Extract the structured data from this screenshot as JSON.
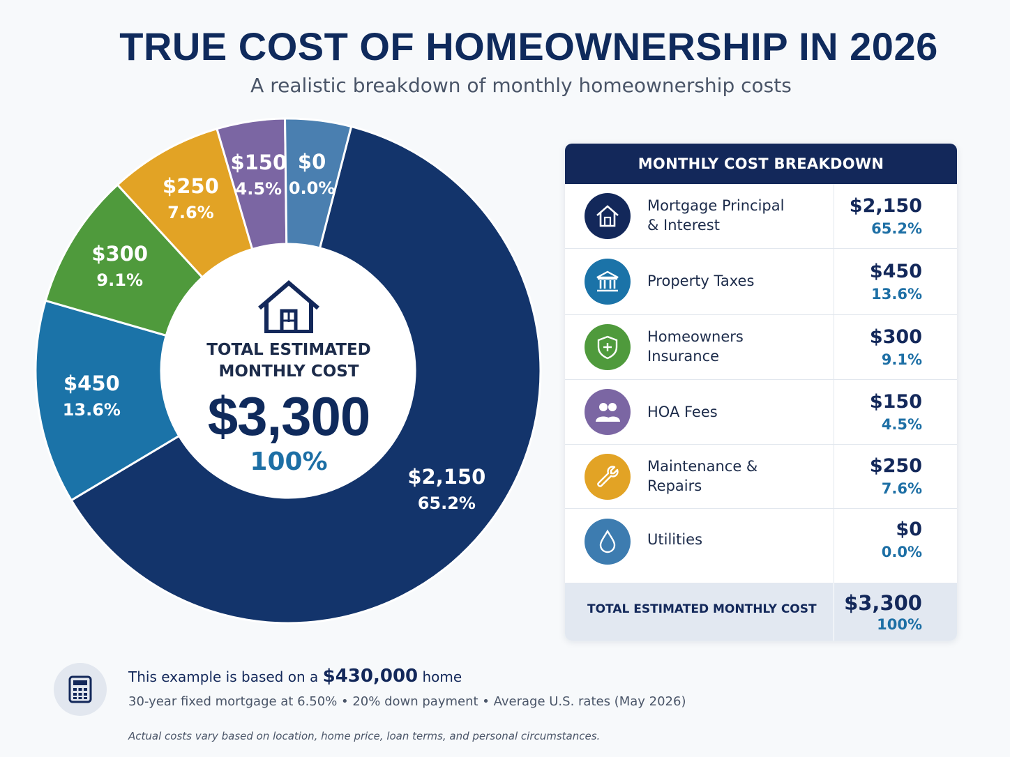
{
  "header": {
    "title": "TRUE COST OF HOMEOWNERSHIP IN 2026",
    "subtitle": "A realistic breakdown of monthly homeownership costs"
  },
  "center": {
    "title_line1": "TOTAL ESTIMATED",
    "title_line2": "MONTHLY COST",
    "value": "$3,300",
    "percent": "100%"
  },
  "chart_data": {
    "type": "pie",
    "categories": [
      "Mortgage Principal & Interest",
      "Property Taxes",
      "Homeowners Insurance",
      "Maintenance & Repairs",
      "HOA Fees",
      "Utilities"
    ],
    "values": [
      2150,
      450,
      300,
      250,
      150,
      0
    ],
    "percents": [
      65.2,
      13.6,
      9.1,
      7.6,
      4.5,
      0.0
    ],
    "value_labels": [
      "$2,150",
      "$450",
      "$300",
      "$250",
      "$150",
      "$0"
    ],
    "percent_labels": [
      "65.2%",
      "13.6%",
      "9.1%",
      "7.6%",
      "4.5%",
      "0.0%"
    ],
    "colors": [
      "#13346b",
      "#1b73a8",
      "#4f9a3c",
      "#e2a325",
      "#7b66a3",
      "#4a7fb0"
    ],
    "total": "$3,300",
    "total_percent": "100%"
  },
  "panel": {
    "heading": "MONTHLY COST BREAKDOWN",
    "rows": [
      {
        "label_line1": "Mortgage Principal",
        "label_line2": "& Interest",
        "amount": "$2,150",
        "percent": "65.2%",
        "icon": "house-icon",
        "color": "#13285a"
      },
      {
        "label_line1": "Property Taxes",
        "label_line2": "",
        "amount": "$450",
        "percent": "13.6%",
        "icon": "bank-icon",
        "color": "#1b73a8"
      },
      {
        "label_line1": "Homeowners",
        "label_line2": "Insurance",
        "amount": "$300",
        "percent": "9.1%",
        "icon": "shield-icon",
        "color": "#4f9a3c"
      },
      {
        "label_line1": "HOA Fees",
        "label_line2": "",
        "amount": "$150",
        "percent": "4.5%",
        "icon": "people-icon",
        "color": "#7b66a3"
      },
      {
        "label_line1": "Maintenance &",
        "label_line2": "Repairs",
        "amount": "$250",
        "percent": "7.6%",
        "icon": "wrench-icon",
        "color": "#e2a325"
      },
      {
        "label_line1": "Utilities",
        "label_line2": "",
        "amount": "$0",
        "percent": "0.0%",
        "icon": "water-drop-icon",
        "color": "#3d7cb0"
      }
    ],
    "total_label": "TOTAL ESTIMATED MONTHLY COST",
    "total_amount": "$3,300",
    "total_percent": "100%"
  },
  "footer": {
    "line1_prefix": "This example is based on a ",
    "line1_amount": "$430,000",
    "line1_suffix": " home",
    "line2": "30-year fixed mortgage at 6.50% • 20% down payment • Average U.S. rates (May 2026)",
    "disclaimer": "Actual costs vary based on location, home price, loan terms, and personal circumstances."
  }
}
